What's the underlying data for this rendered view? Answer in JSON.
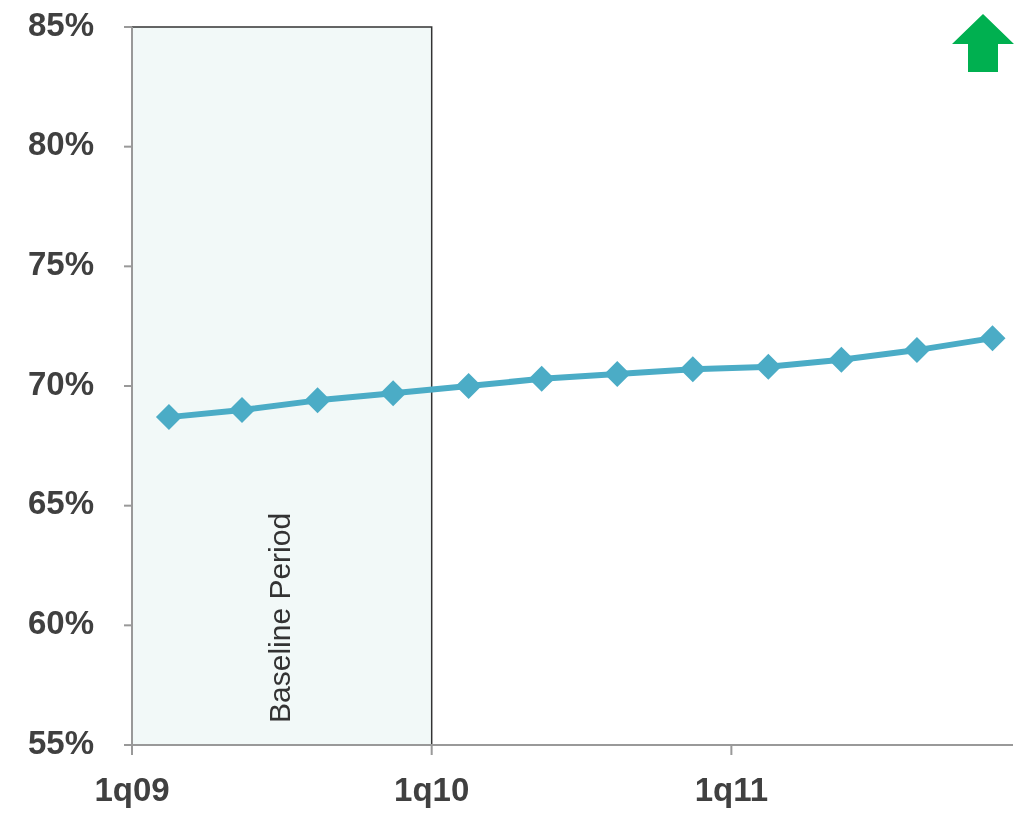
{
  "chart_data": {
    "type": "line",
    "x": [
      "2009-02-15",
      "2009-05-15",
      "2009-08-15",
      "2009-11-15",
      "2010-02-15",
      "2010-05-15",
      "2010-08-15",
      "2010-11-15",
      "2011-02-15",
      "2011-05-15",
      "2011-08-15",
      "2011-11-15"
    ],
    "series": [
      {
        "color": "#4bacc6",
        "values": [
          68.7,
          69.0,
          69.4,
          69.7,
          70.0,
          70.3,
          70.5,
          70.7,
          70.8,
          71.1,
          71.5,
          72.0
        ]
      }
    ],
    "xlim": [
      "2009-01-01",
      "2011-12-10"
    ],
    "xticks": [
      {
        "value": "2009-01-01",
        "label": "1q09"
      },
      {
        "value": "2010-01-01",
        "label": "1q10"
      },
      {
        "value": "2011-01-01",
        "label": "1q11"
      }
    ],
    "ylim": [
      55,
      85
    ],
    "yticks": [
      {
        "value": 55,
        "label": "55%"
      },
      {
        "value": 60,
        "label": "60%"
      },
      {
        "value": 65,
        "label": "65%"
      },
      {
        "value": 70,
        "label": "70%"
      },
      {
        "value": 75,
        "label": "75%"
      },
      {
        "value": 80,
        "label": "80%"
      },
      {
        "value": 85,
        "label": "85%"
      }
    ],
    "bands": [
      {
        "axis": "x",
        "from": "2009-01-01",
        "to": "2010-01-01",
        "label": "Baseline Period",
        "color": "#f2f9f8"
      }
    ],
    "marker": "diamond",
    "line_style": "solid",
    "grid": false
  }
}
